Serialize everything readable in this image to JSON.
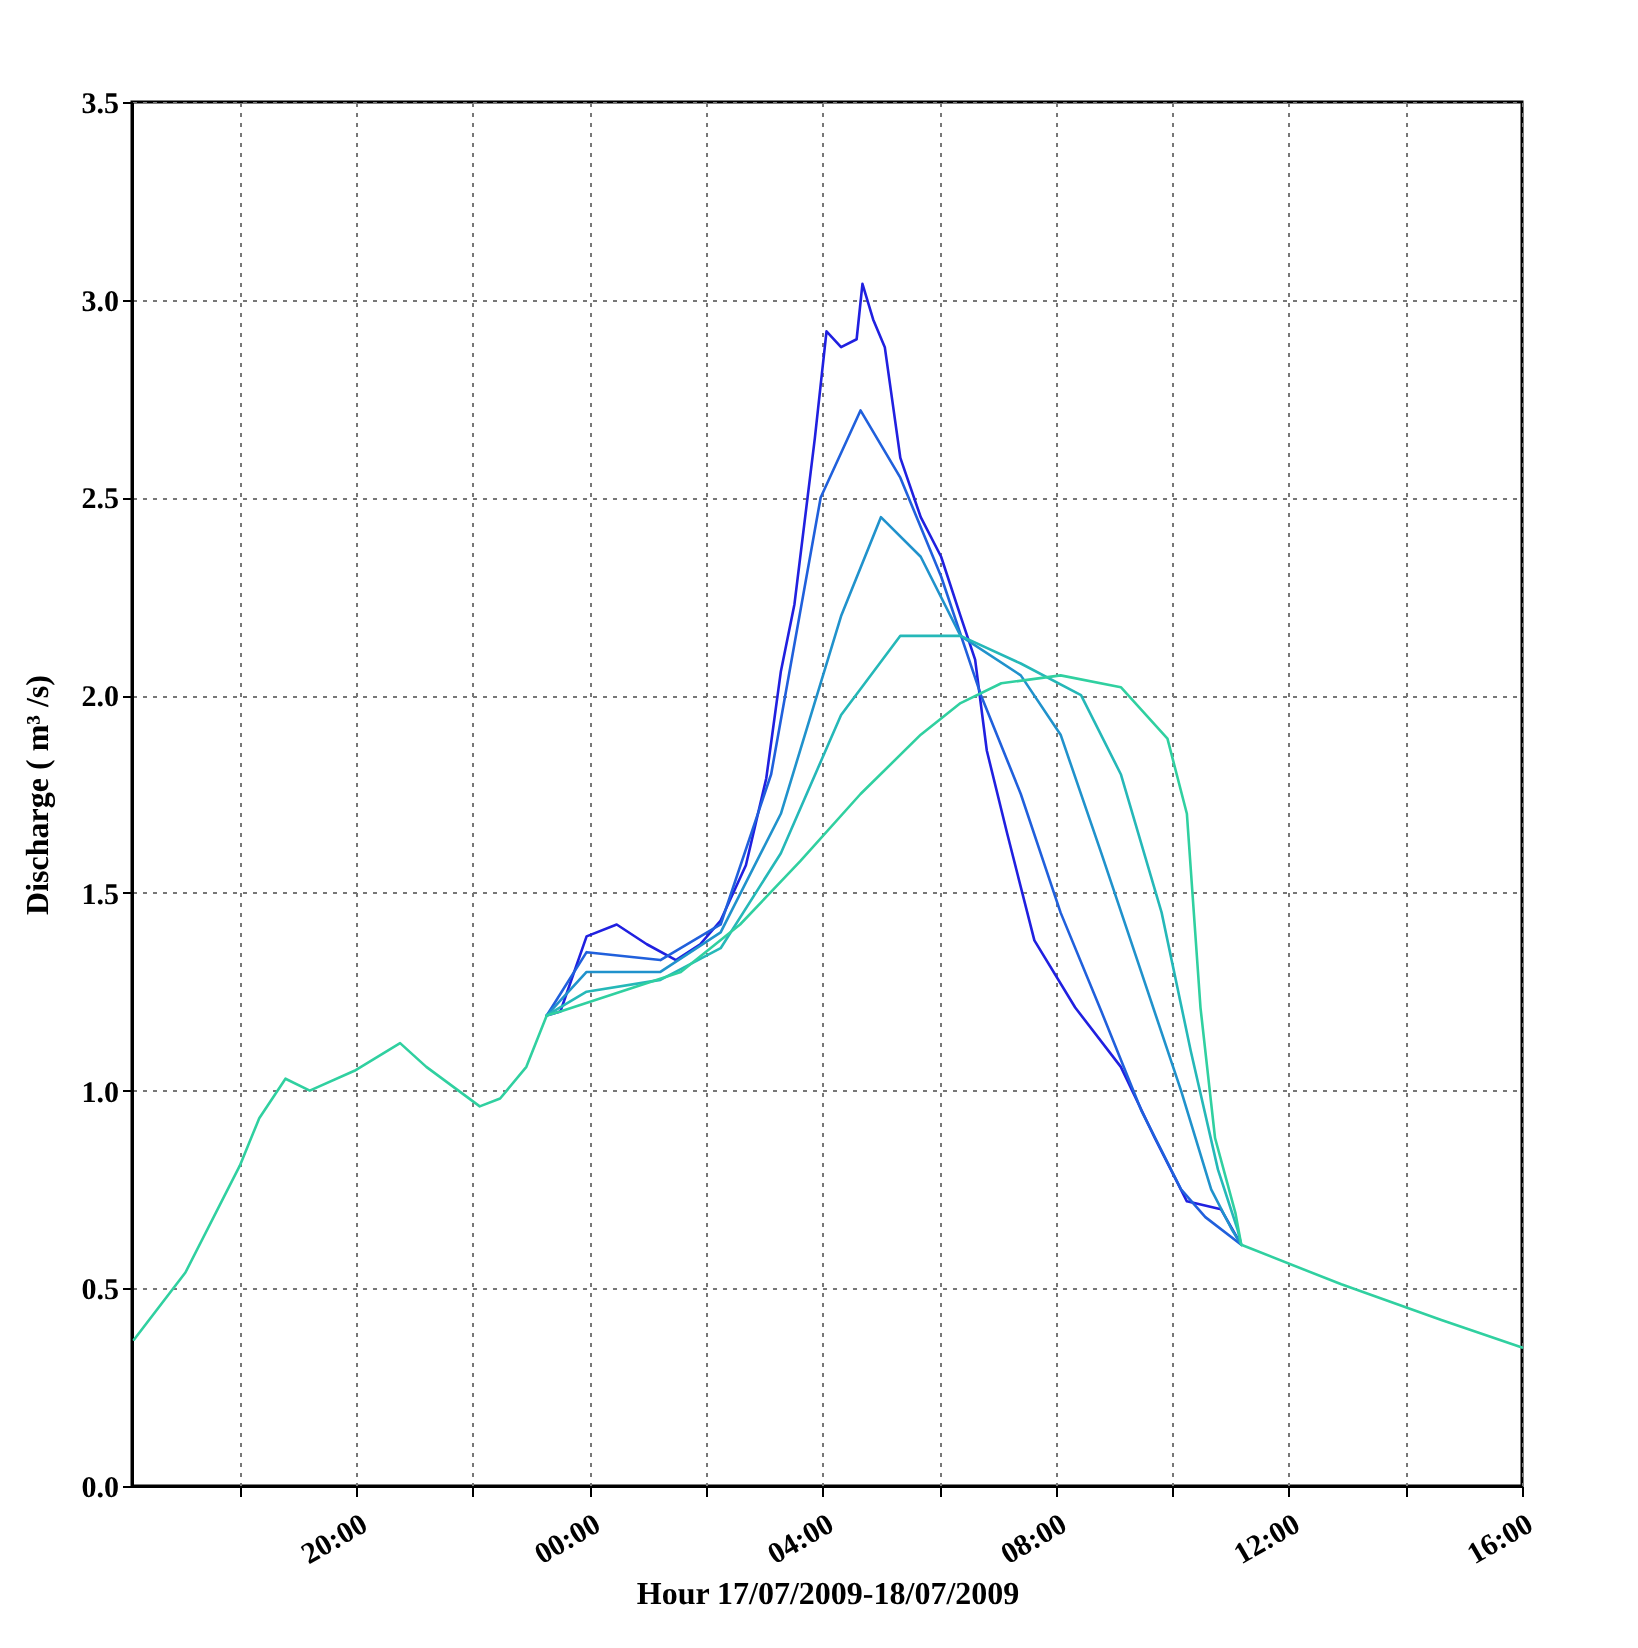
{
  "chart_data": {
    "type": "line",
    "xlabel": "Hour 17/07/2009-18/07/2009",
    "ylabel": "Discharge ( m³ /s)",
    "xlim": [
      "2009-07-17T16:09",
      "2009-07-18T16:00"
    ],
    "ylim": [
      0,
      3.5
    ],
    "xticks": [
      {
        "value": "2009-07-17T18:00",
        "label": null
      },
      {
        "value": "2009-07-17T20:00",
        "label": "20:00"
      },
      {
        "value": "2009-07-17T22:00",
        "label": null
      },
      {
        "value": "2009-07-18T00:00",
        "label": "00:00"
      },
      {
        "value": "2009-07-18T02:00",
        "label": null
      },
      {
        "value": "2009-07-18T04:00",
        "label": "04:00"
      },
      {
        "value": "2009-07-18T06:00",
        "label": null
      },
      {
        "value": "2009-07-18T08:00",
        "label": "08:00"
      },
      {
        "value": "2009-07-18T10:00",
        "label": null
      },
      {
        "value": "2009-07-18T12:00",
        "label": "12:00"
      },
      {
        "value": "2009-07-18T14:00",
        "label": null
      },
      {
        "value": "2009-07-18T16:00",
        "label": "16:00"
      }
    ],
    "yticks": [
      {
        "value": 0,
        "label": "0.0"
      },
      {
        "value": 0.5,
        "label": "0.5"
      },
      {
        "value": 1,
        "label": "1.0"
      },
      {
        "value": 1.5,
        "label": "1.5"
      },
      {
        "value": 2,
        "label": "2.0"
      },
      {
        "value": 2.5,
        "label": "2.5"
      },
      {
        "value": 3,
        "label": "3.0"
      },
      {
        "value": 3.5,
        "label": "3.5"
      }
    ],
    "grid": true,
    "series": [
      {
        "color": "#2020e0",
        "x": [
          "2009-07-17T23:16",
          "2009-07-17T23:30",
          "2009-07-17T23:57",
          "2009-07-18T00:28",
          "2009-07-18T00:59",
          "2009-07-18T01:29",
          "2009-07-18T01:54",
          "2009-07-18T02:15",
          "2009-07-18T02:41",
          "2009-07-18T03:02",
          "2009-07-18T03:17",
          "2009-07-18T03:31",
          "2009-07-18T03:52",
          "2009-07-18T04:04",
          "2009-07-18T04:19",
          "2009-07-18T04:35",
          "2009-07-18T04:41",
          "2009-07-18T04:52",
          "2009-07-18T05:04",
          "2009-07-18T05:20",
          "2009-07-18T05:41",
          "2009-07-18T06:02",
          "2009-07-18T06:22",
          "2009-07-18T06:37",
          "2009-07-18T06:49",
          "2009-07-18T07:10",
          "2009-07-18T07:38",
          "2009-07-18T08:20",
          "2009-07-18T09:07",
          "2009-07-18T09:42",
          "2009-07-18T10:15",
          "2009-07-18T10:50",
          "2009-07-18T11:11"
        ],
        "values": [
          1.19,
          1.2,
          1.39,
          1.42,
          1.37,
          1.33,
          1.37,
          1.43,
          1.57,
          1.79,
          2.06,
          2.23,
          2.65,
          2.92,
          2.88,
          2.9,
          3.04,
          2.95,
          2.88,
          2.6,
          2.45,
          2.35,
          2.2,
          2.09,
          1.86,
          1.65,
          1.38,
          1.21,
          1.06,
          0.88,
          0.72,
          0.7,
          0.61
        ]
      },
      {
        "color": "#2060dc",
        "x": [
          "2009-07-17T23:16",
          "2009-07-17T23:57",
          "2009-07-18T01:13",
          "2009-07-18T02:15",
          "2009-07-18T03:07",
          "2009-07-18T03:58",
          "2009-07-18T04:39",
          "2009-07-18T05:20",
          "2009-07-18T06:02",
          "2009-07-18T06:43",
          "2009-07-18T07:24",
          "2009-07-18T08:05",
          "2009-07-18T08:47",
          "2009-07-18T09:28",
          "2009-07-18T10:09",
          "2009-07-18T10:34",
          "2009-07-18T11:11"
        ],
        "values": [
          1.19,
          1.35,
          1.33,
          1.42,
          1.8,
          2.5,
          2.72,
          2.55,
          2.3,
          2.0,
          1.75,
          1.45,
          1.2,
          0.95,
          0.75,
          0.68,
          0.61
        ]
      },
      {
        "color": "#2092cc",
        "x": [
          "2009-07-17T23:16",
          "2009-07-17T23:57",
          "2009-07-18T01:13",
          "2009-07-18T02:15",
          "2009-07-18T03:17",
          "2009-07-18T04:19",
          "2009-07-18T05:00",
          "2009-07-18T05:41",
          "2009-07-18T06:22",
          "2009-07-18T07:24",
          "2009-07-18T08:05",
          "2009-07-18T08:47",
          "2009-07-18T09:28",
          "2009-07-18T10:09",
          "2009-07-18T10:40",
          "2009-07-18T11:01",
          "2009-07-18T11:11"
        ],
        "values": [
          1.19,
          1.3,
          1.3,
          1.4,
          1.7,
          2.2,
          2.45,
          2.35,
          2.15,
          2.05,
          1.9,
          1.6,
          1.3,
          1.0,
          0.75,
          0.65,
          0.61
        ]
      },
      {
        "color": "#25b8b8",
        "x": [
          "2009-07-17T23:16",
          "2009-07-17T23:57",
          "2009-07-18T01:13",
          "2009-07-18T02:15",
          "2009-07-18T03:17",
          "2009-07-18T04:19",
          "2009-07-18T05:20",
          "2009-07-18T06:22",
          "2009-07-18T07:24",
          "2009-07-18T08:26",
          "2009-07-18T09:07",
          "2009-07-18T09:49",
          "2009-07-18T10:19",
          "2009-07-18T10:47",
          "2009-07-18T11:07",
          "2009-07-18T11:11"
        ],
        "values": [
          1.19,
          1.25,
          1.28,
          1.36,
          1.6,
          1.95,
          2.15,
          2.15,
          2.08,
          2.0,
          1.8,
          1.45,
          1.1,
          0.8,
          0.65,
          0.61
        ]
      },
      {
        "color": "#30d0a0",
        "x": [
          "2009-07-17T16:11",
          "2009-07-17T17:04",
          "2009-07-17T18:00",
          "2009-07-17T18:20",
          "2009-07-17T18:47",
          "2009-07-17T19:12",
          "2009-07-17T19:58",
          "2009-07-17T20:45",
          "2009-07-17T21:12",
          "2009-07-17T22:07",
          "2009-07-17T22:28",
          "2009-07-17T22:55",
          "2009-07-17T23:16",
          "2009-07-17T23:30",
          "2009-07-18T00:32",
          "2009-07-18T01:34",
          "2009-07-18T02:35",
          "2009-07-18T03:37",
          "2009-07-18T04:39",
          "2009-07-18T05:41",
          "2009-07-18T06:22",
          "2009-07-18T07:04",
          "2009-07-18T08:05",
          "2009-07-18T09:07",
          "2009-07-18T09:55",
          "2009-07-18T10:15",
          "2009-07-18T10:29",
          "2009-07-18T10:44",
          "2009-07-18T11:05",
          "2009-07-18T11:11",
          "2009-07-18T12:54",
          "2009-07-18T14:37",
          "2009-07-18T16:00"
        ],
        "values": [
          0.37,
          0.54,
          0.81,
          0.93,
          1.03,
          1.0,
          1.05,
          1.12,
          1.06,
          0.96,
          0.98,
          1.06,
          1.19,
          1.2,
          1.25,
          1.3,
          1.42,
          1.58,
          1.75,
          1.9,
          1.98,
          2.03,
          2.05,
          2.02,
          1.89,
          1.7,
          1.21,
          0.88,
          0.69,
          0.61,
          0.51,
          0.42,
          0.35
        ]
      }
    ]
  }
}
